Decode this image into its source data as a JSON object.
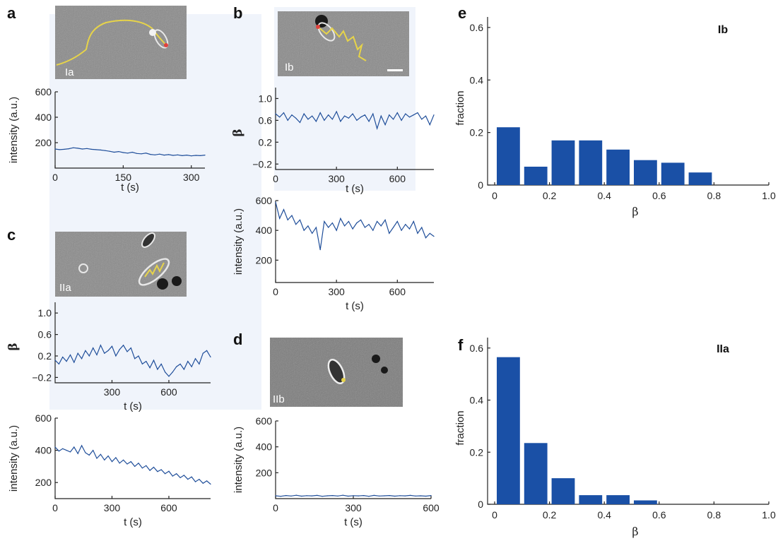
{
  "colors": {
    "line": "#1f4e9a",
    "bar": "#1a50a6",
    "trajectory": "#e6d34a",
    "spot": "#e0413c",
    "shade": "#f0f4fb"
  },
  "panels": {
    "a": {
      "letter": "a",
      "image_label": "Ia"
    },
    "b": {
      "letter": "b",
      "image_label": "Ib"
    },
    "c": {
      "letter": "c",
      "image_label": "IIa"
    },
    "d": {
      "letter": "d",
      "image_label": "IIb"
    },
    "e": {
      "letter": "e"
    },
    "f": {
      "letter": "f"
    }
  },
  "chart_data": [
    {
      "id": "a-intensity",
      "type": "line",
      "xlabel": "t (s)",
      "ylabel": "intensity (a.u.)",
      "xlim": [
        0,
        330
      ],
      "ylim": [
        0,
        600
      ],
      "xticks": [
        0,
        150,
        300
      ],
      "yticks": [
        200,
        400,
        600
      ],
      "x": [
        0,
        10,
        20,
        30,
        40,
        50,
        60,
        70,
        80,
        90,
        100,
        110,
        120,
        130,
        140,
        150,
        160,
        170,
        180,
        190,
        200,
        210,
        220,
        230,
        240,
        250,
        260,
        270,
        280,
        290,
        300,
        310,
        320,
        330
      ],
      "y": [
        150,
        145,
        148,
        152,
        160,
        156,
        150,
        154,
        148,
        145,
        142,
        138,
        132,
        125,
        130,
        122,
        118,
        125,
        115,
        112,
        118,
        108,
        104,
        110,
        102,
        106,
        100,
        104,
        98,
        102,
        96,
        100,
        98,
        102
      ]
    },
    {
      "id": "b-beta",
      "type": "line",
      "xlabel": "t (s)",
      "ylabel": "β",
      "xlim": [
        0,
        780
      ],
      "ylim": [
        -0.3,
        1.2
      ],
      "xticks": [
        0,
        300,
        600
      ],
      "yticks": [
        -0.2,
        0.2,
        0.6,
        1.0
      ],
      "x": [
        0,
        20,
        40,
        60,
        80,
        100,
        120,
        140,
        160,
        180,
        200,
        220,
        240,
        260,
        280,
        300,
        320,
        340,
        360,
        380,
        400,
        420,
        440,
        460,
        480,
        500,
        520,
        540,
        560,
        580,
        600,
        620,
        640,
        660,
        680,
        700,
        720,
        740,
        760,
        780
      ],
      "y": [
        0.72,
        0.66,
        0.74,
        0.6,
        0.7,
        0.64,
        0.56,
        0.72,
        0.62,
        0.68,
        0.58,
        0.74,
        0.6,
        0.7,
        0.62,
        0.76,
        0.58,
        0.68,
        0.64,
        0.72,
        0.6,
        0.66,
        0.7,
        0.58,
        0.72,
        0.45,
        0.68,
        0.52,
        0.7,
        0.62,
        0.74,
        0.6,
        0.72,
        0.66,
        0.7,
        0.74,
        0.62,
        0.68,
        0.52,
        0.7
      ]
    },
    {
      "id": "b-intensity",
      "type": "line",
      "xlabel": "t (s)",
      "ylabel": "intensity (a.u.)",
      "xlim": [
        0,
        780
      ],
      "ylim": [
        50,
        600
      ],
      "xticks": [
        0,
        300,
        600
      ],
      "yticks": [
        200,
        400,
        600
      ],
      "x": [
        0,
        20,
        40,
        60,
        80,
        100,
        120,
        140,
        160,
        180,
        200,
        220,
        240,
        260,
        280,
        300,
        320,
        340,
        360,
        380,
        400,
        420,
        440,
        460,
        480,
        500,
        520,
        540,
        560,
        580,
        600,
        620,
        640,
        660,
        680,
        700,
        720,
        740,
        760,
        780
      ],
      "y": [
        590,
        480,
        540,
        470,
        500,
        440,
        470,
        400,
        430,
        380,
        420,
        270,
        460,
        420,
        450,
        400,
        480,
        430,
        460,
        410,
        450,
        470,
        420,
        440,
        400,
        460,
        430,
        470,
        380,
        420,
        460,
        400,
        440,
        410,
        460,
        380,
        420,
        350,
        380,
        360
      ]
    },
    {
      "id": "c-beta",
      "type": "line",
      "xlabel": "t (s)",
      "ylabel": "β",
      "xlim": [
        0,
        820
      ],
      "ylim": [
        -0.3,
        1.2
      ],
      "xticks": [
        300,
        600
      ],
      "yticks": [
        -0.2,
        0.2,
        0.6,
        1.0
      ],
      "x": [
        0,
        20,
        40,
        60,
        80,
        100,
        120,
        140,
        160,
        180,
        200,
        220,
        240,
        260,
        280,
        300,
        320,
        340,
        360,
        380,
        400,
        420,
        440,
        460,
        480,
        500,
        520,
        540,
        560,
        580,
        600,
        620,
        640,
        660,
        680,
        700,
        720,
        740,
        760,
        780,
        800,
        820
      ],
      "y": [
        0.12,
        0.05,
        0.18,
        0.1,
        0.22,
        0.08,
        0.25,
        0.15,
        0.3,
        0.2,
        0.35,
        0.22,
        0.4,
        0.25,
        0.3,
        0.38,
        0.2,
        0.32,
        0.4,
        0.28,
        0.35,
        0.15,
        0.2,
        0.05,
        0.1,
        -0.02,
        0.12,
        -0.05,
        0.05,
        -0.1,
        -0.18,
        -0.1,
        0.0,
        0.05,
        -0.05,
        0.1,
        0.0,
        0.15,
        0.05,
        0.25,
        0.3,
        0.18
      ]
    },
    {
      "id": "c-intensity",
      "type": "line",
      "xlabel": "t (s)",
      "ylabel": "intensity (a.u.)",
      "xlim": [
        0,
        820
      ],
      "ylim": [
        100,
        600
      ],
      "xticks": [
        0,
        300,
        600
      ],
      "yticks": [
        200,
        400,
        600
      ],
      "x": [
        0,
        20,
        40,
        60,
        80,
        100,
        120,
        140,
        160,
        180,
        200,
        220,
        240,
        260,
        280,
        300,
        320,
        340,
        360,
        380,
        400,
        420,
        440,
        460,
        480,
        500,
        520,
        540,
        560,
        580,
        600,
        620,
        640,
        660,
        680,
        700,
        720,
        740,
        760,
        780,
        800,
        820
      ],
      "y": [
        420,
        395,
        410,
        400,
        390,
        420,
        380,
        430,
        385,
        370,
        400,
        350,
        375,
        340,
        365,
        330,
        355,
        320,
        340,
        315,
        330,
        300,
        320,
        290,
        305,
        275,
        295,
        268,
        280,
        255,
        270,
        240,
        255,
        230,
        245,
        220,
        235,
        205,
        220,
        195,
        210,
        190
      ]
    },
    {
      "id": "d-intensity",
      "type": "line",
      "xlabel": "t (s)",
      "ylabel": "intensity (a.u.)",
      "xlim": [
        0,
        600
      ],
      "ylim": [
        0,
        600
      ],
      "xticks": [
        0,
        300,
        600
      ],
      "yticks": [
        200,
        400,
        600
      ],
      "x": [
        0,
        20,
        40,
        60,
        80,
        100,
        120,
        140,
        160,
        180,
        200,
        220,
        240,
        260,
        280,
        300,
        320,
        340,
        360,
        380,
        400,
        420,
        440,
        460,
        480,
        500,
        520,
        540,
        560,
        580,
        600
      ],
      "y": [
        22,
        18,
        24,
        20,
        26,
        19,
        23,
        21,
        25,
        18,
        22,
        24,
        20,
        26,
        19,
        23,
        21,
        24,
        18,
        25,
        20,
        22,
        24,
        19,
        23,
        21,
        25,
        20,
        22,
        19,
        24
      ]
    },
    {
      "id": "e-hist",
      "type": "bar",
      "title": "Ib",
      "xlabel": "β",
      "ylabel": "fraction",
      "xlim": [
        0,
        1.0
      ],
      "ylim": [
        0,
        0.64
      ],
      "xticks": [
        0,
        0.2,
        0.4,
        0.6,
        0.8,
        1.0
      ],
      "yticks": [
        0,
        0.2,
        0.4,
        0.6
      ],
      "categories": [
        0.05,
        0.15,
        0.25,
        0.35,
        0.45,
        0.55,
        0.65,
        0.75
      ],
      "values": [
        0.22,
        0.07,
        0.17,
        0.17,
        0.135,
        0.095,
        0.085,
        0.048
      ]
    },
    {
      "id": "f-hist",
      "type": "bar",
      "title": "IIa",
      "xlabel": "β",
      "ylabel": "fraction",
      "xlim": [
        0,
        1.0
      ],
      "ylim": [
        0,
        0.64
      ],
      "xticks": [
        0,
        0.2,
        0.4,
        0.6,
        0.8,
        1.0
      ],
      "yticks": [
        0,
        0.2,
        0.4,
        0.6
      ],
      "categories": [
        0.05,
        0.15,
        0.25,
        0.35,
        0.45,
        0.55
      ],
      "values": [
        0.565,
        0.235,
        0.1,
        0.035,
        0.035,
        0.015
      ]
    }
  ]
}
